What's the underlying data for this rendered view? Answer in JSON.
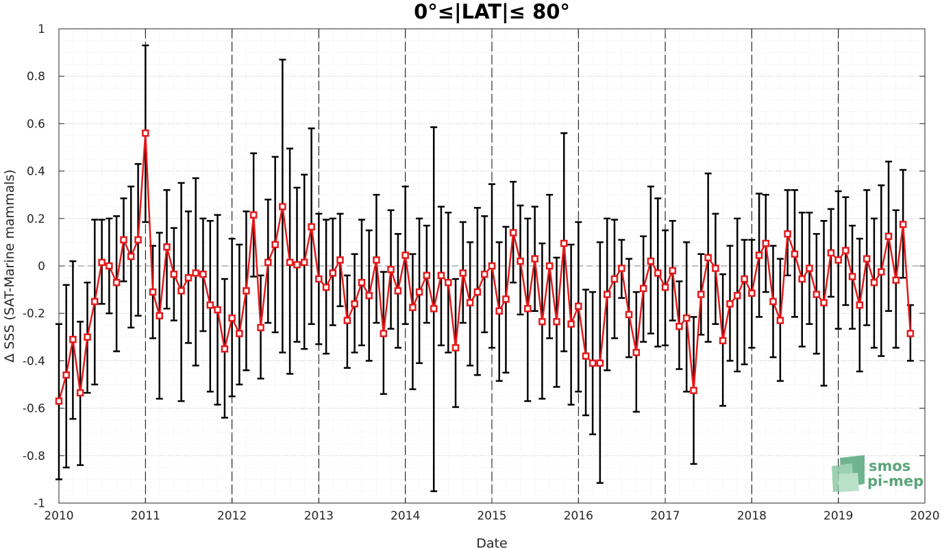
{
  "chart_data": {
    "type": "line",
    "title": "0°≤|LAT|≤ 80°",
    "xlabel": "Date",
    "ylabel": "Δ SSS (SAT-Marine mammals)",
    "xlim": [
      "2010-01-01",
      "2020-01-01"
    ],
    "ylim": [
      -1,
      1
    ],
    "x_ticks": [
      "2010",
      "2011",
      "2012",
      "2013",
      "2014",
      "2015",
      "2016",
      "2017",
      "2018",
      "2019",
      "2020"
    ],
    "y_ticks": [
      "-1",
      "-0.8",
      "-0.6",
      "-0.4",
      "-0.2",
      "0",
      "0.2",
      "0.4",
      "0.6",
      "0.8",
      "1"
    ],
    "grid": true,
    "minor_grid": true,
    "year_boundaries": [
      "2011",
      "2012",
      "2013",
      "2014",
      "2015",
      "2016",
      "2017",
      "2018",
      "2019"
    ],
    "reference_line_y": 0,
    "legend": "none",
    "colors": {
      "series": "#e31a1c",
      "errorbar": "#000000",
      "zero_line": "#808080",
      "year_line": "#000000"
    },
    "series": [
      {
        "x": [
          "2010-01",
          "2010-02",
          "2010-03",
          "2010-04",
          "2010-05",
          "2010-06",
          "2010-07",
          "2010-08",
          "2010-09",
          "2010-10",
          "2010-11",
          "2010-12",
          "2011-01",
          "2011-02",
          "2011-03",
          "2011-04",
          "2011-05",
          "2011-06",
          "2011-07",
          "2011-08",
          "2011-09",
          "2011-10",
          "2011-11",
          "2011-12",
          "2012-01",
          "2012-02",
          "2012-03",
          "2012-04",
          "2012-05",
          "2012-06",
          "2012-07",
          "2012-08",
          "2012-09",
          "2012-10",
          "2012-11",
          "2012-12",
          "2013-01",
          "2013-02",
          "2013-03",
          "2013-04",
          "2013-05",
          "2013-06",
          "2013-07",
          "2013-08",
          "2013-09",
          "2013-10",
          "2013-11",
          "2013-12",
          "2014-01",
          "2014-02",
          "2014-03",
          "2014-04",
          "2014-05",
          "2014-06",
          "2014-07",
          "2014-08",
          "2014-09",
          "2014-10",
          "2014-11",
          "2014-12",
          "2015-01",
          "2015-02",
          "2015-03",
          "2015-04",
          "2015-05",
          "2015-06",
          "2015-07",
          "2015-08",
          "2015-09",
          "2015-10",
          "2015-11",
          "2015-12",
          "2016-01",
          "2016-02",
          "2016-03",
          "2016-04",
          "2016-05",
          "2016-06",
          "2016-07",
          "2016-08",
          "2016-09",
          "2016-10",
          "2016-11",
          "2016-12",
          "2017-01",
          "2017-02",
          "2017-03",
          "2017-04",
          "2017-05",
          "2017-06",
          "2017-07",
          "2017-08",
          "2017-09",
          "2017-10",
          "2017-11",
          "2017-12",
          "2018-01",
          "2018-02",
          "2018-03",
          "2018-04",
          "2018-05",
          "2018-06",
          "2018-07",
          "2018-08",
          "2018-09",
          "2018-10",
          "2018-11",
          "2018-12",
          "2019-01",
          "2019-02",
          "2019-03",
          "2019-04",
          "2019-05",
          "2019-06",
          "2019-07",
          "2019-08",
          "2019-09",
          "2019-10",
          "2019-11"
        ],
        "y": [
          -0.57,
          -0.46,
          -0.31,
          -0.535,
          -0.3,
          -0.15,
          0.015,
          0.0,
          -0.07,
          0.11,
          0.04,
          0.11,
          0.56,
          -0.11,
          -0.21,
          0.08,
          -0.035,
          -0.105,
          -0.05,
          -0.03,
          -0.035,
          -0.165,
          -0.185,
          -0.35,
          -0.22,
          -0.285,
          -0.105,
          0.215,
          -0.26,
          0.015,
          0.09,
          0.25,
          0.015,
          0.005,
          0.015,
          0.165,
          -0.055,
          -0.09,
          -0.03,
          0.025,
          -0.23,
          -0.16,
          -0.07,
          -0.125,
          0.025,
          -0.285,
          -0.015,
          -0.105,
          0.045,
          -0.175,
          -0.11,
          -0.04,
          -0.18,
          -0.04,
          -0.07,
          -0.345,
          -0.03,
          -0.155,
          -0.11,
          -0.035,
          0.0,
          -0.19,
          -0.14,
          0.14,
          0.02,
          -0.18,
          0.03,
          -0.235,
          0.0,
          -0.235,
          0.095,
          -0.245,
          -0.17,
          -0.38,
          -0.41,
          -0.41,
          -0.12,
          -0.055,
          -0.01,
          -0.205,
          -0.365,
          -0.095,
          0.02,
          -0.03,
          -0.09,
          -0.02,
          -0.255,
          -0.22,
          -0.525,
          -0.12,
          0.035,
          -0.01,
          -0.315,
          -0.16,
          -0.125,
          -0.055,
          -0.115,
          0.045,
          0.095,
          -0.15,
          -0.23,
          0.135,
          0.05,
          -0.055,
          -0.01,
          -0.12,
          -0.155,
          0.055,
          0.025,
          0.065,
          -0.045,
          -0.165,
          0.03,
          -0.07,
          -0.025,
          0.125,
          -0.06,
          0.175,
          -0.285
        ],
        "y_upper": [
          -0.245,
          -0.08,
          0.02,
          -0.235,
          -0.07,
          0.195,
          0.195,
          0.2,
          0.21,
          0.285,
          0.335,
          0.43,
          0.93,
          0.085,
          0.14,
          0.32,
          0.16,
          0.35,
          0.23,
          0.37,
          0.2,
          0.19,
          0.215,
          -0.055,
          0.115,
          0.09,
          0.23,
          0.475,
          -0.04,
          0.28,
          0.46,
          0.87,
          0.495,
          0.33,
          0.385,
          0.58,
          0.22,
          0.195,
          0.2,
          0.22,
          -0.04,
          0.05,
          0.195,
          0.15,
          0.3,
          -0.025,
          0.235,
          0.135,
          0.335,
          0.05,
          0.2,
          0.17,
          0.585,
          0.25,
          0.225,
          -0.055,
          0.185,
          0.1,
          0.245,
          0.21,
          0.345,
          0.1,
          0.165,
          0.355,
          0.255,
          0.2,
          0.25,
          0.095,
          0.3,
          0.035,
          0.56,
          0.09,
          0.185,
          -0.1,
          -0.11,
          0.1,
          0.2,
          0.195,
          0.11,
          0.03,
          -0.11,
          0.125,
          0.335,
          0.285,
          0.15,
          0.19,
          -0.065,
          0.1,
          -0.215,
          0.05,
          0.39,
          0.22,
          -0.035,
          0.085,
          0.2,
          0.11,
          0.11,
          0.305,
          0.3,
          0.085,
          0.03,
          0.32,
          0.32,
          0.225,
          0.225,
          0.135,
          0.19,
          0.24,
          0.315,
          0.29,
          0.17,
          0.115,
          0.32,
          0.2,
          0.34,
          0.44,
          0.235,
          0.405,
          -0.165
        ],
        "y_lower": [
          -0.9,
          -0.85,
          -0.645,
          -0.84,
          -0.535,
          -0.5,
          -0.16,
          -0.2,
          -0.36,
          -0.065,
          -0.26,
          -0.21,
          0.185,
          -0.305,
          -0.56,
          -0.18,
          -0.23,
          -0.57,
          -0.325,
          -0.42,
          -0.275,
          -0.53,
          -0.585,
          -0.64,
          -0.55,
          -0.5,
          -0.44,
          -0.045,
          -0.475,
          -0.24,
          -0.28,
          -0.365,
          -0.455,
          -0.32,
          -0.35,
          -0.245,
          -0.33,
          -0.37,
          -0.25,
          -0.17,
          -0.43,
          -0.365,
          -0.335,
          -0.4,
          -0.24,
          -0.54,
          -0.265,
          -0.345,
          -0.245,
          -0.52,
          -0.41,
          -0.24,
          -0.95,
          -0.335,
          -0.365,
          -0.595,
          -0.24,
          -0.42,
          -0.46,
          -0.28,
          -0.345,
          -0.485,
          -0.45,
          -0.07,
          -0.205,
          -0.57,
          -0.19,
          -0.56,
          -0.305,
          -0.51,
          -0.36,
          -0.585,
          -0.53,
          -0.63,
          -0.71,
          -0.915,
          -0.44,
          -0.305,
          -0.135,
          -0.385,
          -0.615,
          -0.32,
          -0.285,
          -0.34,
          -0.335,
          -0.23,
          -0.435,
          -0.53,
          -0.835,
          -0.29,
          -0.32,
          -0.245,
          -0.59,
          -0.4,
          -0.445,
          -0.415,
          -0.345,
          -0.215,
          -0.11,
          -0.385,
          -0.485,
          -0.04,
          -0.215,
          -0.34,
          -0.245,
          -0.37,
          -0.505,
          -0.13,
          -0.265,
          -0.165,
          -0.265,
          -0.445,
          -0.25,
          -0.345,
          -0.38,
          -0.19,
          -0.345,
          -0.05,
          -0.4
        ]
      }
    ]
  },
  "logo": {
    "line1": "smos",
    "line2": "pi-mep"
  }
}
